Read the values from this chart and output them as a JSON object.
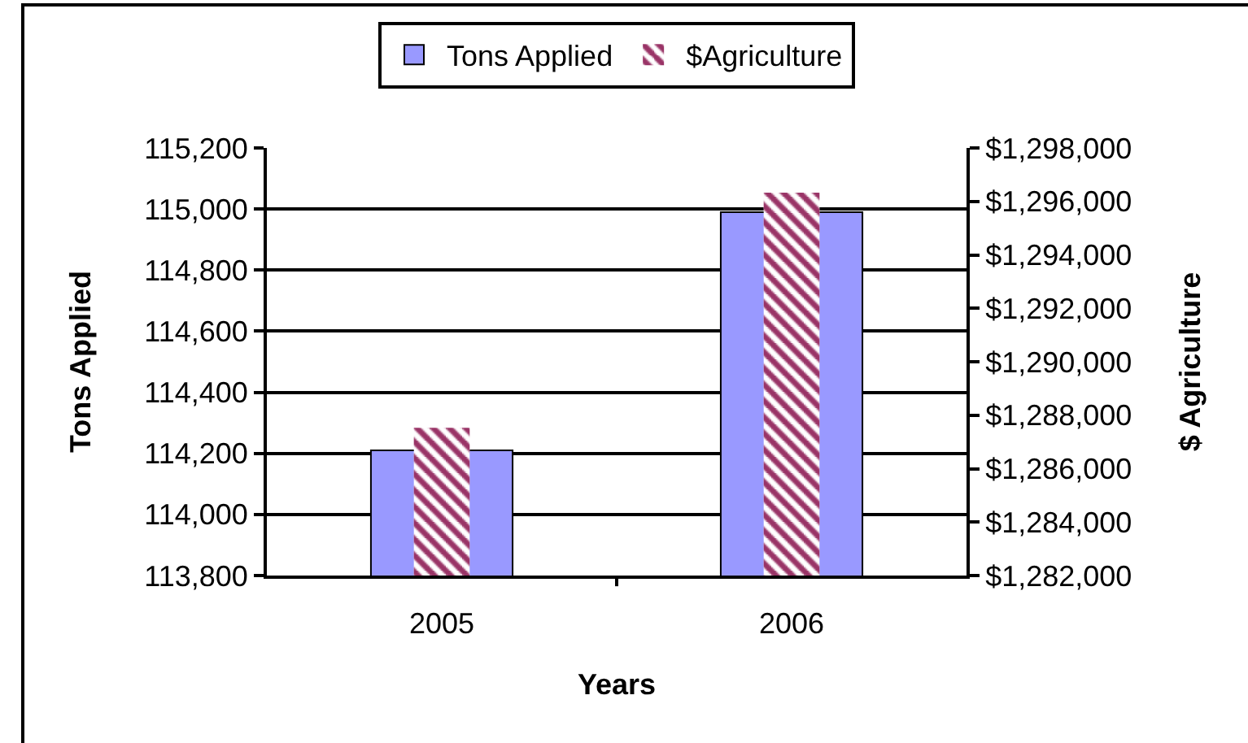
{
  "chart_data": {
    "type": "bar",
    "categories": [
      "2005",
      "2006"
    ],
    "xlabel": "Years",
    "ylabel": "Tons Applied",
    "y2label": "$ Agriculture",
    "series": [
      {
        "name": "Tons Applied",
        "color": "#9999ff",
        "values": [
          114210,
          114990
        ]
      },
      {
        "name": "$Agriculture",
        "color": "#993366",
        "values": [
          1287500,
          1296300
        ],
        "axis": "y2"
      }
    ],
    "ylim": [
      113800,
      115200
    ],
    "yticks": [
      {
        "value": 113800,
        "label": "113,800"
      },
      {
        "value": 114000,
        "label": "114,000"
      },
      {
        "value": 114200,
        "label": "114,200"
      },
      {
        "value": 114400,
        "label": "114,400"
      },
      {
        "value": 114600,
        "label": "114,600"
      },
      {
        "value": 114800,
        "label": "114,800"
      },
      {
        "value": 115000,
        "label": "115,000"
      },
      {
        "value": 115200,
        "label": "115,200"
      }
    ],
    "y2lim": [
      1282000,
      1298000
    ],
    "y2ticks": [
      {
        "value": 1282000,
        "label": "$1,282,000"
      },
      {
        "value": 1284000,
        "label": "$1,284,000"
      },
      {
        "value": 1286000,
        "label": "$1,286,000"
      },
      {
        "value": 1288000,
        "label": "$1,288,000"
      },
      {
        "value": 1290000,
        "label": "$1,290,000"
      },
      {
        "value": 1292000,
        "label": "$1,292,000"
      },
      {
        "value": 1294000,
        "label": "$1,294,000"
      },
      {
        "value": 1296000,
        "label": "$1,296,000"
      },
      {
        "value": 1298000,
        "label": "$1,298,000"
      }
    ],
    "grid": "y",
    "legend": "top"
  }
}
